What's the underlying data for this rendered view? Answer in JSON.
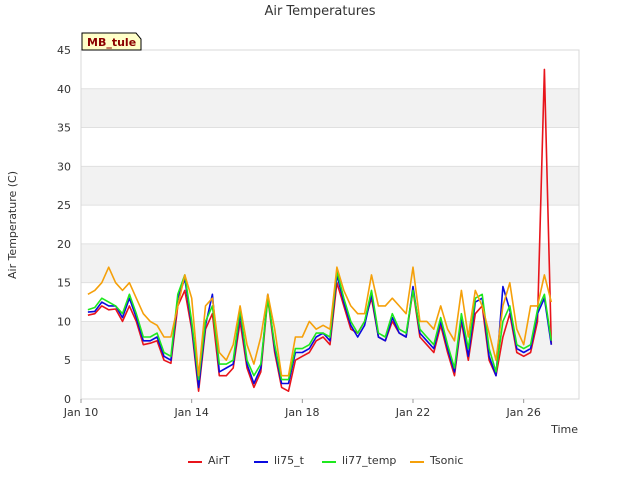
{
  "chart_data": {
    "type": "line",
    "title": "Air Temperatures",
    "xlabel": "Time",
    "ylabel": "Air Temperature (C)",
    "site_label": "MB_tule",
    "xlim": [
      "2024-01-10",
      "2024-01-28"
    ],
    "ylim": [
      0,
      45
    ],
    "y_ticks": [
      0,
      5,
      10,
      15,
      20,
      25,
      30,
      35,
      40,
      45
    ],
    "x_ticks": [
      {
        "date": "2024-01-10",
        "label": "Jan 10"
      },
      {
        "date": "2024-01-14",
        "label": "Jan 14"
      },
      {
        "date": "2024-01-18",
        "label": "Jan 18"
      },
      {
        "date": "2024-01-22",
        "label": "Jan 22"
      },
      {
        "date": "2024-01-26",
        "label": "Jan 26"
      }
    ],
    "grid": "horizontal bands",
    "legend": "bottom",
    "series": [
      {
        "name": "AirT",
        "color": "#e8141b"
      },
      {
        "name": "li75_t",
        "color": "#0a0adf"
      },
      {
        "name": "li77_temp",
        "color": "#1ee81e"
      },
      {
        "name": "Tsonic",
        "color": "#f5a00a"
      }
    ],
    "x": [
      "2024-01-10 06:00",
      "2024-01-10 12:00",
      "2024-01-10 18:00",
      "2024-01-11 00:00",
      "2024-01-11 06:00",
      "2024-01-11 12:00",
      "2024-01-11 18:00",
      "2024-01-12 00:00",
      "2024-01-12 06:00",
      "2024-01-12 12:00",
      "2024-01-12 18:00",
      "2024-01-13 00:00",
      "2024-01-13 06:00",
      "2024-01-13 12:00",
      "2024-01-13 18:00",
      "2024-01-14 00:00",
      "2024-01-14 06:00",
      "2024-01-14 12:00",
      "2024-01-14 18:00",
      "2024-01-15 00:00",
      "2024-01-15 06:00",
      "2024-01-15 12:00",
      "2024-01-15 18:00",
      "2024-01-16 00:00",
      "2024-01-16 06:00",
      "2024-01-16 12:00",
      "2024-01-16 18:00",
      "2024-01-17 00:00",
      "2024-01-17 06:00",
      "2024-01-17 12:00",
      "2024-01-17 18:00",
      "2024-01-18 00:00",
      "2024-01-18 06:00",
      "2024-01-18 12:00",
      "2024-01-18 18:00",
      "2024-01-19 00:00",
      "2024-01-19 06:00",
      "2024-01-19 12:00",
      "2024-01-19 18:00",
      "2024-01-20 00:00",
      "2024-01-20 06:00",
      "2024-01-20 12:00",
      "2024-01-20 18:00",
      "2024-01-21 00:00",
      "2024-01-21 06:00",
      "2024-01-21 12:00",
      "2024-01-21 18:00",
      "2024-01-22 00:00",
      "2024-01-22 06:00",
      "2024-01-22 12:00",
      "2024-01-22 18:00",
      "2024-01-23 00:00",
      "2024-01-23 06:00",
      "2024-01-23 12:00",
      "2024-01-23 18:00",
      "2024-01-24 00:00",
      "2024-01-24 06:00",
      "2024-01-24 12:00",
      "2024-01-24 18:00",
      "2024-01-25 00:00",
      "2024-01-25 06:00",
      "2024-01-25 12:00",
      "2024-01-25 18:00",
      "2024-01-26 00:00",
      "2024-01-26 06:00",
      "2024-01-26 12:00",
      "2024-01-26 18:00",
      "2024-01-27 00:00",
      "2024-01-27 06:00",
      "2024-01-27 12:00",
      "2024-01-27 18:00",
      "2024-01-28 00:00",
      "2024-01-28 06:00"
    ],
    "values": {
      "AirT": [
        10.8,
        11.0,
        12.0,
        11.5,
        11.6,
        10.0,
        12.0,
        10.0,
        7.0,
        7.2,
        7.5,
        5.0,
        4.6,
        12.0,
        14.0,
        9.0,
        1.0,
        9.0,
        11.0,
        3.0,
        3.0,
        4.0,
        10.0,
        4.0,
        1.5,
        3.5,
        13.0,
        6.0,
        1.5,
        1.0,
        5.0,
        5.5,
        6.0,
        7.5,
        8.0,
        7.0,
        15.0,
        12.0,
        9.0,
        8.5,
        10.0,
        13.0,
        8.0,
        7.5,
        10.0,
        8.5,
        8.0,
        14.0,
        8.0,
        7.0,
        6.0,
        9.5,
        6.0,
        3.0,
        10.0,
        5.0,
        11.0,
        12.0,
        5.0,
        3.0,
        8.0,
        11.0,
        6.0,
        5.5,
        6.0,
        10.0,
        42.5,
        7.0,
        null,
        null,
        null,
        null,
        null
      ],
      "li75_t": [
        11.2,
        11.3,
        12.5,
        12.0,
        12.0,
        10.5,
        13.0,
        10.5,
        7.5,
        7.5,
        8.0,
        5.5,
        5.0,
        13.0,
        15.5,
        9.5,
        1.5,
        9.5,
        13.5,
        3.5,
        4.0,
        4.5,
        11.0,
        4.5,
        2.0,
        4.0,
        13.5,
        6.5,
        2.0,
        2.0,
        6.0,
        6.0,
        6.5,
        8.0,
        8.5,
        7.5,
        16.0,
        12.5,
        9.5,
        8.0,
        9.5,
        13.5,
        8.0,
        7.5,
        10.5,
        8.5,
        8.0,
        14.5,
        8.5,
        7.5,
        6.5,
        10.0,
        6.5,
        3.5,
        10.5,
        5.5,
        12.5,
        13.0,
        5.5,
        3.0,
        14.5,
        11.5,
        6.5,
        6.0,
        6.5,
        11.0,
        13.0,
        7.0,
        null,
        null,
        null,
        null,
        null
      ],
      "li77_temp": [
        11.5,
        11.8,
        13.0,
        12.5,
        12.0,
        11.0,
        13.5,
        11.0,
        8.0,
        8.0,
        8.5,
        6.0,
        5.5,
        13.5,
        16.0,
        10.0,
        2.5,
        10.0,
        12.0,
        4.5,
        4.5,
        5.0,
        11.5,
        5.0,
        3.0,
        4.5,
        13.0,
        7.0,
        2.5,
        2.5,
        6.5,
        6.5,
        7.0,
        8.5,
        8.5,
        8.0,
        16.5,
        13.0,
        10.0,
        8.5,
        10.0,
        14.0,
        8.5,
        8.0,
        11.0,
        9.0,
        8.5,
        14.0,
        9.0,
        8.0,
        7.0,
        10.5,
        7.0,
        4.0,
        11.0,
        6.5,
        13.0,
        13.5,
        6.5,
        3.5,
        10.0,
        12.0,
        7.0,
        6.5,
        7.0,
        11.5,
        13.5,
        7.5,
        null,
        null,
        null,
        null,
        null
      ],
      "Tsonic": [
        13.5,
        14.0,
        15.0,
        17.0,
        15.0,
        14.0,
        15.0,
        13.0,
        11.0,
        10.0,
        9.5,
        8.0,
        8.0,
        12.0,
        16.0,
        13.0,
        3.0,
        12.0,
        13.0,
        6.0,
        5.0,
        7.0,
        12.0,
        7.0,
        4.5,
        8.0,
        13.5,
        9.0,
        3.0,
        3.0,
        8.0,
        8.0,
        10.0,
        9.0,
        9.5,
        9.0,
        17.0,
        14.0,
        12.0,
        11.0,
        11.0,
        16.0,
        12.0,
        12.0,
        13.0,
        12.0,
        11.0,
        17.0,
        10.0,
        10.0,
        9.0,
        12.0,
        9.0,
        7.5,
        14.0,
        8.0,
        14.0,
        12.0,
        8.5,
        5.0,
        12.0,
        15.0,
        9.0,
        7.0,
        12.0,
        12.0,
        16.0,
        12.5,
        null,
        null,
        null,
        null,
        null
      ]
    }
  }
}
